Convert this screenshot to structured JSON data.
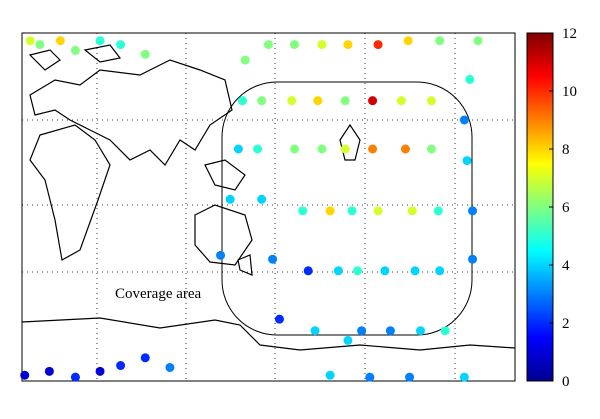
{
  "chart_data": {
    "type": "map-scatter",
    "annotation": "Coverage area",
    "colormap": "jet",
    "xlim": [
      0,
      360
    ],
    "ylim": [
      -90,
      90
    ],
    "clim": [
      0,
      12
    ],
    "cticks": [
      0,
      2,
      4,
      6,
      8,
      10,
      12
    ],
    "x": [
      6,
      13,
      28,
      39,
      57,
      72,
      90,
      163,
      161,
      158,
      152,
      145,
      180,
      175,
      172,
      175,
      183,
      188,
      199,
      197,
      199,
      205,
      209,
      214,
      225,
      219,
      216,
      219,
      225,
      231,
      238,
      254,
      238,
      236,
      236,
      241,
      245,
      248,
      260,
      256,
      256,
      260,
      265,
      269,
      283,
      282,
      277,
      280,
      285,
      287,
      291,
      305,
      299,
      299,
      304,
      305,
      309,
      323,
      333,
      327,
      323,
      325,
      329,
      329,
      2,
      20,
      39,
      57,
      72,
      90,
      108
    ],
    "y": [
      86,
      84,
      86,
      81,
      86,
      84,
      79,
      76,
      55,
      30,
      4,
      -25,
      84,
      55,
      30,
      4,
      -27,
      -58,
      84,
      55,
      30,
      -2,
      -33,
      -64,
      -87,
      84,
      55,
      30,
      -2,
      -33,
      -69,
      -88,
      84,
      55,
      30,
      -2,
      -33,
      -64,
      84,
      55,
      30,
      -2,
      -33,
      -64,
      -88,
      86,
      55,
      30,
      -2,
      -33,
      -64,
      86,
      55,
      30,
      -2,
      -33,
      -64,
      -88,
      86,
      66,
      45,
      24,
      -2,
      -27,
      -87,
      -85,
      -88,
      -85,
      -82,
      -78,
      -83
    ],
    "values": [
      7,
      6,
      8,
      6,
      5,
      5,
      6,
      6,
      5,
      4,
      4,
      3,
      6,
      6,
      5,
      4,
      3,
      2,
      6,
      7,
      6,
      5,
      2,
      4,
      4,
      7,
      8,
      6,
      8,
      4,
      4,
      3,
      8,
      6,
      7,
      5,
      5,
      3,
      10,
      11,
      9,
      7,
      4,
      3,
      3,
      8,
      7,
      9,
      7,
      4,
      4,
      6,
      7,
      6,
      5,
      4,
      5,
      4,
      6,
      5,
      3,
      4,
      3,
      3,
      1,
      1,
      2,
      1,
      2,
      2,
      3
    ]
  }
}
